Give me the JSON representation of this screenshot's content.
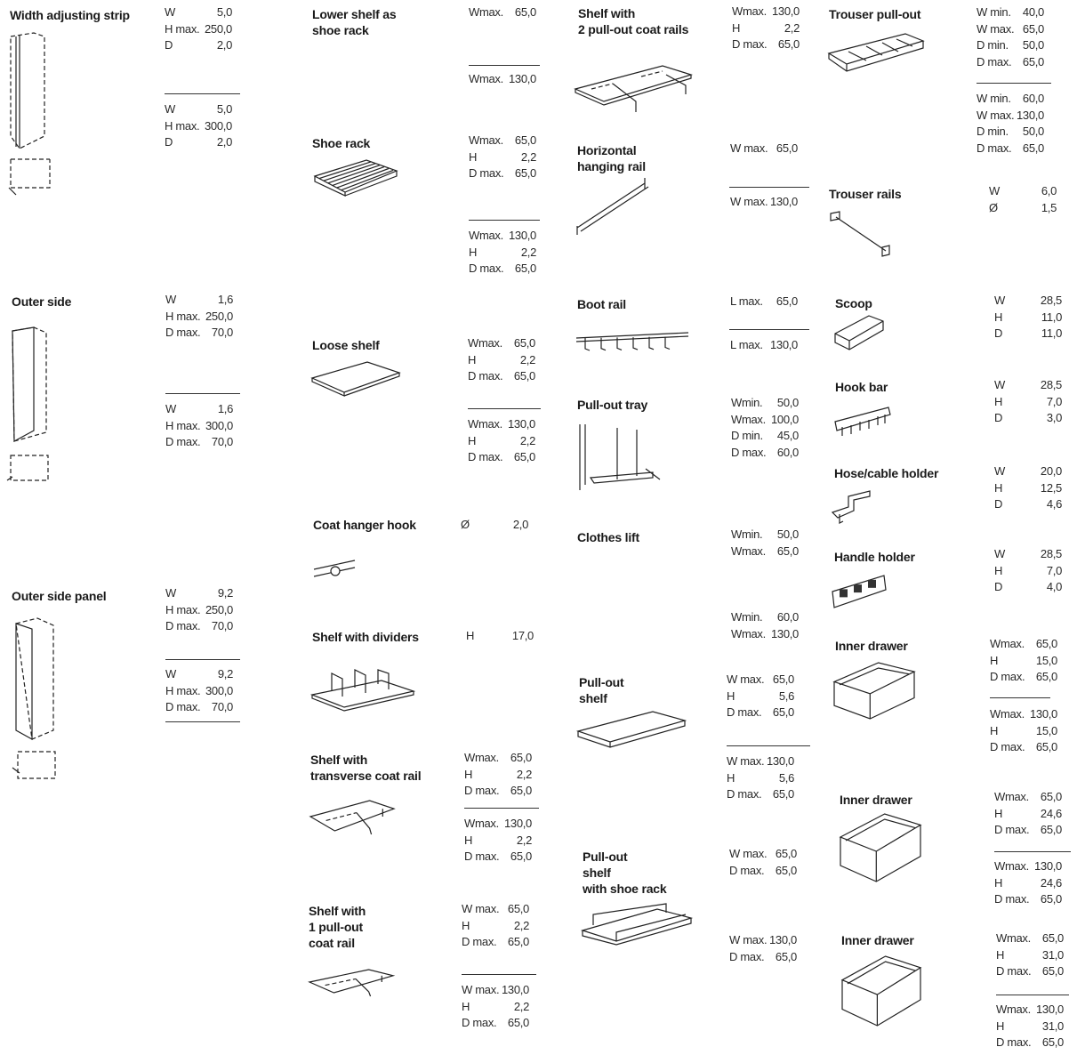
{
  "items": [
    {
      "title": [
        "Width adjusting strip"
      ],
      "icon": "width-adjusting-strip-drawing",
      "specs": [
        [
          {
            "l": "W",
            "v": "5,0"
          },
          {
            "l": "H max.",
            "v": "250,0"
          },
          {
            "l": "D",
            "v": "2,0"
          }
        ],
        [
          {
            "l": "W",
            "v": "5,0"
          },
          {
            "l": "H max.",
            "v": "300,0"
          },
          {
            "l": "D",
            "v": "2,0"
          }
        ]
      ]
    },
    {
      "title": [
        "Outer side"
      ],
      "icon": "outer-side-drawing",
      "specs": [
        [
          {
            "l": "W",
            "v": "1,6"
          },
          {
            "l": "H max.",
            "v": "250,0"
          },
          {
            "l": "D max.",
            "v": "70,0"
          }
        ],
        [
          {
            "l": "W",
            "v": "1,6"
          },
          {
            "l": "H max.",
            "v": "300,0"
          },
          {
            "l": "D max.",
            "v": "70,0"
          }
        ]
      ]
    },
    {
      "title": [
        "Outer side panel"
      ],
      "icon": "outer-side-panel-drawing",
      "specs": [
        [
          {
            "l": "W",
            "v": "9,2"
          },
          {
            "l": "H max.",
            "v": "250,0"
          },
          {
            "l": "D max.",
            "v": "70,0"
          }
        ],
        [
          {
            "l": "W",
            "v": "9,2"
          },
          {
            "l": "H max.",
            "v": "300,0"
          },
          {
            "l": "D max.",
            "v": "70,0"
          }
        ]
      ]
    },
    {
      "title": [
        "Lower shelf as",
        "shoe rack"
      ],
      "icon": "none",
      "specs": [
        [
          {
            "l": "Wmax.",
            "v": "65,0"
          }
        ],
        [
          {
            "l": "Wmax.",
            "v": "130,0"
          }
        ]
      ]
    },
    {
      "title": [
        "Shoe rack"
      ],
      "icon": "shoe-rack-drawing",
      "specs": [
        [
          {
            "l": "Wmax.",
            "v": "65,0"
          },
          {
            "l": "H",
            "v": "2,2"
          },
          {
            "l": "D max.",
            "v": "65,0"
          }
        ],
        [
          {
            "l": "Wmax.",
            "v": "130,0"
          },
          {
            "l": "H",
            "v": "2,2"
          },
          {
            "l": "D max.",
            "v": "65,0"
          }
        ]
      ]
    },
    {
      "title": [
        "Loose shelf"
      ],
      "icon": "loose-shelf-drawing",
      "specs": [
        [
          {
            "l": "Wmax.",
            "v": "65,0"
          },
          {
            "l": "H",
            "v": "2,2"
          },
          {
            "l": "D max.",
            "v": "65,0"
          }
        ],
        [
          {
            "l": "Wmax.",
            "v": "130,0"
          },
          {
            "l": "H",
            "v": "2,2"
          },
          {
            "l": "D max.",
            "v": "65,0"
          }
        ]
      ]
    },
    {
      "title": [
        "Coat hanger hook"
      ],
      "icon": "coat-hanger-hook-drawing",
      "specs": [
        [
          {
            "l": "Ø",
            "v": "2,0"
          }
        ]
      ]
    },
    {
      "title": [
        "Shelf with dividers"
      ],
      "icon": "shelf-with-dividers-drawing",
      "specs": [
        [
          {
            "l": "H",
            "v": "17,0"
          }
        ]
      ]
    },
    {
      "title": [
        "Shelf with",
        "transverse coat rail"
      ],
      "icon": "shelf-transverse-rail-drawing",
      "specs": [
        [
          {
            "l": "Wmax.",
            "v": "65,0"
          },
          {
            "l": "H",
            "v": "2,2"
          },
          {
            "l": "D max.",
            "v": "65,0"
          }
        ],
        [
          {
            "l": "Wmax.",
            "v": "130,0"
          },
          {
            "l": "H",
            "v": "2,2"
          },
          {
            "l": "D max.",
            "v": "65,0"
          }
        ]
      ]
    },
    {
      "title": [
        "Shelf with",
        "1 pull-out",
        "coat rail"
      ],
      "icon": "shelf-one-pullout-rail-drawing",
      "specs": [
        [
          {
            "l": "W max.",
            "v": "65,0"
          },
          {
            "l": "H",
            "v": "2,2"
          },
          {
            "l": "D max.",
            "v": "65,0"
          }
        ],
        [
          {
            "l": "W max.",
            "v": "130,0"
          },
          {
            "l": "H",
            "v": "2,2"
          },
          {
            "l": "D max.",
            "v": "65,0"
          }
        ]
      ]
    },
    {
      "title": [
        "Shelf with",
        "2 pull-out coat rails"
      ],
      "icon": "shelf-two-pullout-rails-drawing",
      "specs": [
        [
          {
            "l": "Wmax.",
            "v": "130,0"
          },
          {
            "l": "H",
            "v": "2,2"
          },
          {
            "l": "D max.",
            "v": "65,0"
          }
        ]
      ]
    },
    {
      "title": [
        "Horizontal",
        "hanging rail"
      ],
      "icon": "hanging-rail-drawing",
      "specs": [
        [
          {
            "l": "W max.",
            "v": "65,0"
          }
        ],
        [
          {
            "l": "W max.",
            "v": "130,0"
          }
        ]
      ]
    },
    {
      "title": [
        "Boot rail"
      ],
      "icon": "boot-rail-drawing",
      "specs": [
        [
          {
            "l": "L max.",
            "v": "65,0"
          }
        ],
        [
          {
            "l": "L max.",
            "v": "130,0"
          }
        ]
      ]
    },
    {
      "title": [
        "Pull-out tray"
      ],
      "icon": "pull-out-tray-drawing",
      "specs": [
        [
          {
            "l": "Wmin.",
            "v": "50,0"
          },
          {
            "l": "Wmax.",
            "v": "100,0"
          },
          {
            "l": "D min.",
            "v": "45,0"
          },
          {
            "l": "D max.",
            "v": "60,0"
          }
        ]
      ]
    },
    {
      "title": [
        "Clothes lift"
      ],
      "icon": "none",
      "specs": [
        [
          {
            "l": "Wmin.",
            "v": "50,0"
          },
          {
            "l": "Wmax.",
            "v": "65,0"
          }
        ],
        [
          {
            "l": "Wmin.",
            "v": "60,0"
          },
          {
            "l": "Wmax.",
            "v": "130,0"
          }
        ]
      ]
    },
    {
      "title": [
        "Pull-out",
        "shelf"
      ],
      "icon": "pull-out-shelf-drawing",
      "specs": [
        [
          {
            "l": "W max.",
            "v": "65,0"
          },
          {
            "l": "H",
            "v": "5,6"
          },
          {
            "l": "D max.",
            "v": "65,0"
          }
        ],
        [
          {
            "l": "W max.",
            "v": "130,0"
          },
          {
            "l": "H",
            "v": "5,6"
          },
          {
            "l": "D max.",
            "v": "65,0"
          }
        ]
      ]
    },
    {
      "title": [
        "Pull-out",
        "shelf",
        "with shoe rack"
      ],
      "icon": "pull-out-shoe-rack-drawing",
      "specs": [
        [
          {
            "l": "W max.",
            "v": "65,0"
          },
          {
            "l": "D max.",
            "v": "65,0"
          }
        ],
        [
          {
            "l": "W max.",
            "v": "130,0"
          },
          {
            "l": "D max.",
            "v": "65,0"
          }
        ]
      ]
    },
    {
      "title": [
        "Trouser pull-out"
      ],
      "icon": "trouser-pull-out-drawing",
      "specs": [
        [
          {
            "l": "W min.",
            "v": "40,0"
          },
          {
            "l": "W max.",
            "v": "65,0"
          },
          {
            "l": "D min.",
            "v": "50,0"
          },
          {
            "l": "D max.",
            "v": "65,0"
          }
        ],
        [
          {
            "l": "W min.",
            "v": "60,0"
          },
          {
            "l": "W max.",
            "v": "130,0"
          },
          {
            "l": "D min.",
            "v": "50,0"
          },
          {
            "l": "D max.",
            "v": "65,0"
          }
        ]
      ]
    },
    {
      "title": [
        "Trouser rails"
      ],
      "icon": "trouser-rails-drawing",
      "specs": [
        [
          {
            "l": "W",
            "v": "6,0"
          },
          {
            "l": "Ø",
            "v": "1,5"
          }
        ]
      ]
    },
    {
      "title": [
        "Scoop"
      ],
      "icon": "scoop-drawing",
      "specs": [
        [
          {
            "l": "W",
            "v": "28,5"
          },
          {
            "l": "H",
            "v": "11,0"
          },
          {
            "l": "D",
            "v": "11,0"
          }
        ]
      ]
    },
    {
      "title": [
        "Hook bar"
      ],
      "icon": "hook-bar-drawing",
      "specs": [
        [
          {
            "l": "W",
            "v": "28,5"
          },
          {
            "l": "H",
            "v": "7,0"
          },
          {
            "l": "D",
            "v": "3,0"
          }
        ]
      ]
    },
    {
      "title": [
        "Hose/cable holder"
      ],
      "icon": "hose-cable-holder-drawing",
      "specs": [
        [
          {
            "l": "W",
            "v": "20,0"
          },
          {
            "l": "H",
            "v": "12,5"
          },
          {
            "l": "D",
            "v": "4,6"
          }
        ]
      ]
    },
    {
      "title": [
        "Handle holder"
      ],
      "icon": "handle-holder-drawing",
      "specs": [
        [
          {
            "l": "W",
            "v": "28,5"
          },
          {
            "l": "H",
            "v": "7,0"
          },
          {
            "l": "D",
            "v": "4,0"
          }
        ]
      ]
    },
    {
      "title": [
        "Inner drawer"
      ],
      "icon": "inner-drawer-drawing",
      "specs": [
        [
          {
            "l": "Wmax.",
            "v": "65,0"
          },
          {
            "l": "H",
            "v": "15,0"
          },
          {
            "l": "D max.",
            "v": "65,0"
          }
        ],
        [
          {
            "l": "Wmax.",
            "v": "130,0"
          },
          {
            "l": "H",
            "v": "15,0"
          },
          {
            "l": "D max.",
            "v": "65,0"
          }
        ]
      ]
    },
    {
      "title": [
        "Inner drawer"
      ],
      "icon": "inner-drawer-drawing",
      "specs": [
        [
          {
            "l": "Wmax.",
            "v": "65,0"
          },
          {
            "l": "H",
            "v": "24,6"
          },
          {
            "l": "D max.",
            "v": "65,0"
          }
        ],
        [
          {
            "l": "Wmax.",
            "v": "130,0"
          },
          {
            "l": "H",
            "v": "24,6"
          },
          {
            "l": "D max.",
            "v": "65,0"
          }
        ]
      ]
    },
    {
      "title": [
        "Inner drawer"
      ],
      "icon": "inner-drawer-drawing",
      "specs": [
        [
          {
            "l": "Wmax.",
            "v": "65,0"
          },
          {
            "l": "H",
            "v": "31,0"
          },
          {
            "l": "D max.",
            "v": "65,0"
          }
        ],
        [
          {
            "l": "Wmax.",
            "v": "130,0"
          },
          {
            "l": "H",
            "v": "31,0"
          },
          {
            "l": "D max.",
            "v": "65,0"
          }
        ]
      ]
    }
  ]
}
